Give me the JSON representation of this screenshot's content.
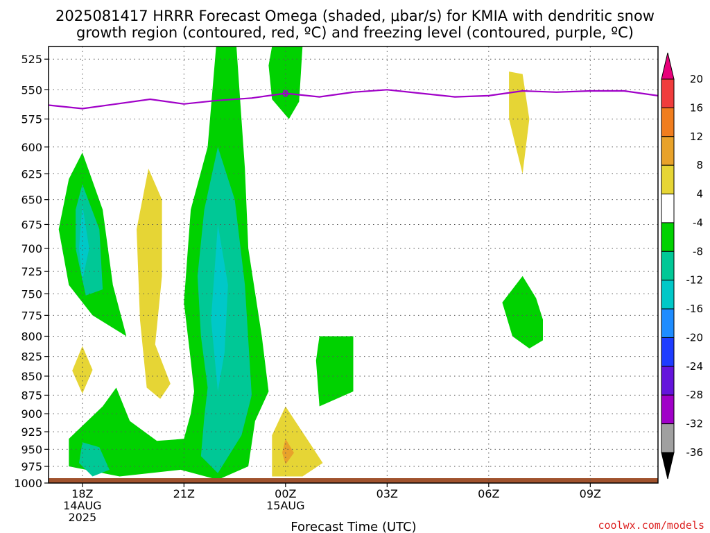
{
  "title": {
    "line1": "2025081417 HRRR Forecast Omega (shaded, μbar/s) for KMIA with dendritic snow",
    "line2": "growth region (contoured, red, ºC) and freezing level (contoured, purple, ºC)"
  },
  "credit": "coolwx.com/models",
  "chart_data": {
    "type": "heatmap",
    "title": "2025081417 HRRR Forecast Omega (shaded, μbar/s) for KMIA with dendritic snow growth region (contoured, red, ºC) and freezing level (contoured, purple, ºC)",
    "xlabel": "Forecast Time (UTC)",
    "ylabel": "",
    "x_unit": "forecast hour from 2025-08-14 17Z",
    "xlim": [
      0,
      18
    ],
    "y_scale": "log-pressure, reversed",
    "ylim": [
      1000,
      515
    ],
    "grid": true,
    "x_ticks": [
      {
        "x": 1,
        "lines": [
          "18Z",
          "14AUG",
          "2025"
        ]
      },
      {
        "x": 4,
        "lines": [
          "21Z"
        ]
      },
      {
        "x": 7,
        "lines": [
          "00Z",
          "15AUG"
        ]
      },
      {
        "x": 10,
        "lines": [
          "03Z"
        ]
      },
      {
        "x": 13,
        "lines": [
          "06Z"
        ]
      },
      {
        "x": 16,
        "lines": [
          "09Z"
        ]
      }
    ],
    "y_ticks": [
      525,
      550,
      575,
      600,
      625,
      650,
      675,
      700,
      725,
      750,
      775,
      800,
      825,
      850,
      875,
      900,
      925,
      950,
      975,
      1000
    ],
    "colorbar": {
      "labels": [
        "20",
        "16",
        "12",
        "8",
        "4",
        "-4",
        "-8",
        "-12",
        "-16",
        "-20",
        "-24",
        "-28",
        "-32",
        "-36"
      ],
      "colors": [
        "#e8007a",
        "#f03c3c",
        "#f07d1e",
        "#e8a22a",
        "#e6d535",
        "#ffffff",
        "#00d200",
        "#00c896",
        "#00c8c8",
        "#1e8cff",
        "#1e3cff",
        "#6414dc",
        "#a000c8",
        "#a0a0a0",
        "#000000"
      ]
    },
    "freezing_level": {
      "color": "#a000c8",
      "label": "0",
      "label_x": 7,
      "x": [
        0,
        1,
        2,
        3,
        4,
        5,
        6,
        7,
        8,
        9,
        10,
        11,
        12,
        13,
        14,
        15,
        16,
        17,
        18
      ],
      "y": [
        563,
        566,
        562,
        558,
        562,
        559,
        557,
        553,
        556,
        552,
        550,
        553,
        556,
        555,
        551,
        552,
        551,
        551,
        555
      ]
    },
    "surface_layer": {
      "color": "#a0522d"
    },
    "regions": [
      {
        "name": "omega -4 to -8",
        "color": "#00d200",
        "points": [
          [
            1.0,
            605
          ],
          [
            1.6,
            660
          ],
          [
            1.9,
            740
          ],
          [
            2.3,
            800
          ],
          [
            1.3,
            775
          ],
          [
            0.6,
            740
          ],
          [
            0.3,
            680
          ],
          [
            0.6,
            630
          ]
        ]
      },
      {
        "name": "omega -8 to -12",
        "color": "#00c896",
        "points": [
          [
            1.0,
            635
          ],
          [
            1.5,
            680
          ],
          [
            1.6,
            745
          ],
          [
            1.1,
            752
          ],
          [
            0.8,
            700
          ],
          [
            0.8,
            660
          ]
        ]
      },
      {
        "name": "omega -12 to -16",
        "color": "#00c8c8",
        "points": [
          [
            1.0,
            655
          ],
          [
            1.2,
            700
          ],
          [
            1.0,
            735
          ],
          [
            0.9,
            700
          ]
        ]
      },
      {
        "name": "omega 4 to 8",
        "color": "#e6d535",
        "points": [
          [
            1.0,
            812
          ],
          [
            1.3,
            842
          ],
          [
            1.0,
            873
          ],
          [
            0.7,
            843
          ]
        ]
      },
      {
        "name": "omega 4 to 8",
        "color": "#e6d535",
        "points": [
          [
            2.95,
            620
          ],
          [
            3.35,
            650
          ],
          [
            3.35,
            730
          ],
          [
            3.15,
            810
          ],
          [
            3.6,
            860
          ],
          [
            3.3,
            880
          ],
          [
            2.9,
            865
          ],
          [
            2.7,
            780
          ],
          [
            2.6,
            680
          ]
        ]
      },
      {
        "name": "omega -4 to -8",
        "color": "#00d200",
        "points": [
          [
            4.95,
            515
          ],
          [
            5.55,
            515
          ],
          [
            5.8,
            620
          ],
          [
            5.9,
            700
          ],
          [
            6.3,
            800
          ],
          [
            6.5,
            870
          ],
          [
            6.1,
            910
          ],
          [
            5.9,
            975
          ],
          [
            5.0,
            995
          ],
          [
            3.9,
            980
          ],
          [
            2.1,
            990
          ],
          [
            0.6,
            975
          ],
          [
            0.6,
            935
          ],
          [
            1.6,
            890
          ],
          [
            2.0,
            865
          ],
          [
            2.4,
            910
          ],
          [
            3.2,
            938
          ],
          [
            4.0,
            935
          ],
          [
            4.2,
            900
          ],
          [
            4.3,
            870
          ],
          [
            4.2,
            830
          ],
          [
            4.0,
            760
          ],
          [
            4.2,
            660
          ],
          [
            4.7,
            600
          ]
        ]
      },
      {
        "name": "omega -8 to -12",
        "color": "#00c896",
        "points": [
          [
            5.0,
            600
          ],
          [
            5.5,
            650
          ],
          [
            5.8,
            740
          ],
          [
            6.0,
            875
          ],
          [
            5.7,
            930
          ],
          [
            5.0,
            985
          ],
          [
            4.5,
            960
          ],
          [
            4.6,
            905
          ],
          [
            4.7,
            865
          ],
          [
            4.5,
            800
          ],
          [
            4.4,
            730
          ],
          [
            4.6,
            660
          ]
        ]
      },
      {
        "name": "omega -8 to -12",
        "color": "#00c896",
        "points": [
          [
            1.0,
            940
          ],
          [
            1.5,
            947
          ],
          [
            1.8,
            980
          ],
          [
            1.3,
            990
          ],
          [
            0.9,
            970
          ]
        ]
      },
      {
        "name": "omega -12 to -16",
        "color": "#00c8c8",
        "points": [
          [
            5.0,
            675
          ],
          [
            5.3,
            740
          ],
          [
            5.2,
            820
          ],
          [
            5.0,
            870
          ],
          [
            4.8,
            780
          ]
        ]
      },
      {
        "name": "omega -4 to -8",
        "color": "#00d200",
        "points": [
          [
            6.6,
            515
          ],
          [
            7.5,
            515
          ],
          [
            7.4,
            560
          ],
          [
            7.1,
            575
          ],
          [
            6.6,
            558
          ],
          [
            6.5,
            530
          ]
        ]
      },
      {
        "name": "omega -4 to -8",
        "color": "#00d200",
        "points": [
          [
            8.0,
            800
          ],
          [
            9.0,
            800
          ],
          [
            9.0,
            870
          ],
          [
            8.0,
            890
          ],
          [
            7.9,
            830
          ]
        ]
      },
      {
        "name": "omega 4 to 8",
        "color": "#e6d535",
        "points": [
          [
            7.0,
            890
          ],
          [
            7.7,
            940
          ],
          [
            8.1,
            970
          ],
          [
            7.5,
            990
          ],
          [
            6.6,
            990
          ],
          [
            6.6,
            930
          ]
        ]
      },
      {
        "name": "omega 8 to 12",
        "color": "#e8a22a",
        "points": [
          [
            7.0,
            935
          ],
          [
            7.25,
            955
          ],
          [
            7.0,
            972
          ],
          [
            6.9,
            955
          ]
        ]
      },
      {
        "name": "omega 4 to 8",
        "color": "#e6d535",
        "points": [
          [
            13.6,
            535
          ],
          [
            14.0,
            537
          ],
          [
            14.2,
            575
          ],
          [
            14.0,
            625
          ],
          [
            13.6,
            575
          ]
        ]
      },
      {
        "name": "omega -4 to -8",
        "color": "#00d200",
        "points": [
          [
            14.0,
            730
          ],
          [
            14.4,
            755
          ],
          [
            14.6,
            780
          ],
          [
            14.6,
            805
          ],
          [
            14.2,
            815
          ],
          [
            13.7,
            800
          ],
          [
            13.4,
            760
          ]
        ]
      }
    ]
  }
}
